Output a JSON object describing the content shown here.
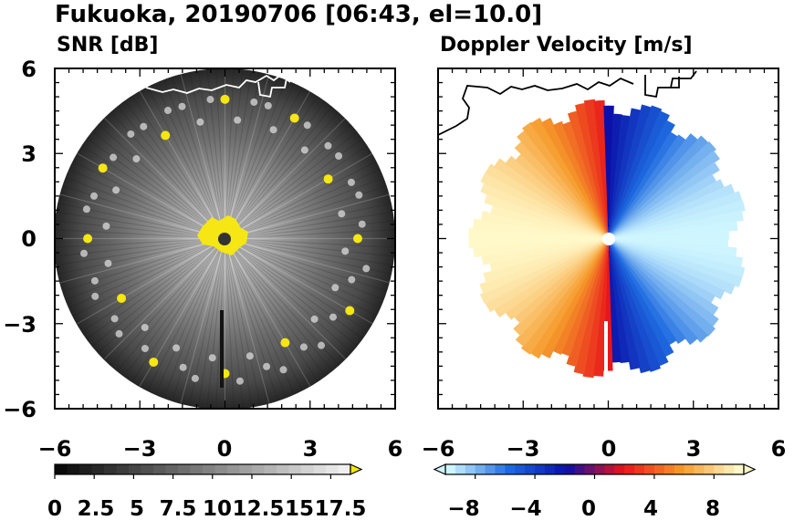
{
  "figure_title": "Fukuoka, 20190706 [06:43, el=10.0]",
  "colors": {
    "snr_low": "#000000",
    "snr_high": "#ffffff",
    "snr_over": "#f5e614",
    "vel_neg_far": "#cff6ff",
    "vel_neg_mid": "#1e6be0",
    "vel_neg_near": "#0a0fa8",
    "vel_pos_near": "#e8141a",
    "vel_pos_mid": "#f59a2a",
    "vel_pos_far": "#fff8c8",
    "coastline": "#000000",
    "radar_site": "#333333"
  },
  "chart_data": [
    {
      "type": "heatmap",
      "name": "snr-panel",
      "title": "SNR [dB]",
      "xlim": [
        -6,
        6
      ],
      "ylim": [
        -6,
        6
      ],
      "xticks": [
        -6,
        -3,
        0,
        3,
        6
      ],
      "yticks": [
        -6,
        -3,
        0,
        3,
        6
      ],
      "xtick_labels": [
        "−6",
        "−3",
        "0",
        "3",
        "6"
      ],
      "ytick_labels": [
        "−6",
        "−3",
        "0",
        "3",
        "6"
      ],
      "max_range": 6,
      "colorbar": {
        "min": 0,
        "max": 18.75,
        "levels": 24,
        "extend": "max",
        "ticks": [
          0,
          2.5,
          5,
          7.5,
          10,
          12.5,
          15,
          17.5
        ],
        "tick_labels": [
          "0",
          "2.5",
          "5",
          "7.5",
          "10",
          "12.5",
          "15",
          "17.5"
        ]
      }
    },
    {
      "type": "heatmap",
      "name": "doppler-panel",
      "title": "Doppler Velocity [m/s]",
      "xlim": [
        -6,
        6
      ],
      "ylim": [
        -6,
        6
      ],
      "xticks": [
        -6,
        -3,
        0,
        3,
        6
      ],
      "yticks": [
        -6,
        -3,
        0,
        3,
        6
      ],
      "xtick_labels": [
        "−6",
        "−3",
        "0",
        "3",
        "6"
      ],
      "max_range": 6,
      "colorbar": {
        "min": -10,
        "max": 10,
        "levels": 30,
        "extend": "both",
        "ticks": [
          -8,
          -4,
          0,
          4,
          8
        ],
        "tick_labels": [
          "−8",
          "−4",
          "0",
          "4",
          "8"
        ]
      }
    }
  ]
}
